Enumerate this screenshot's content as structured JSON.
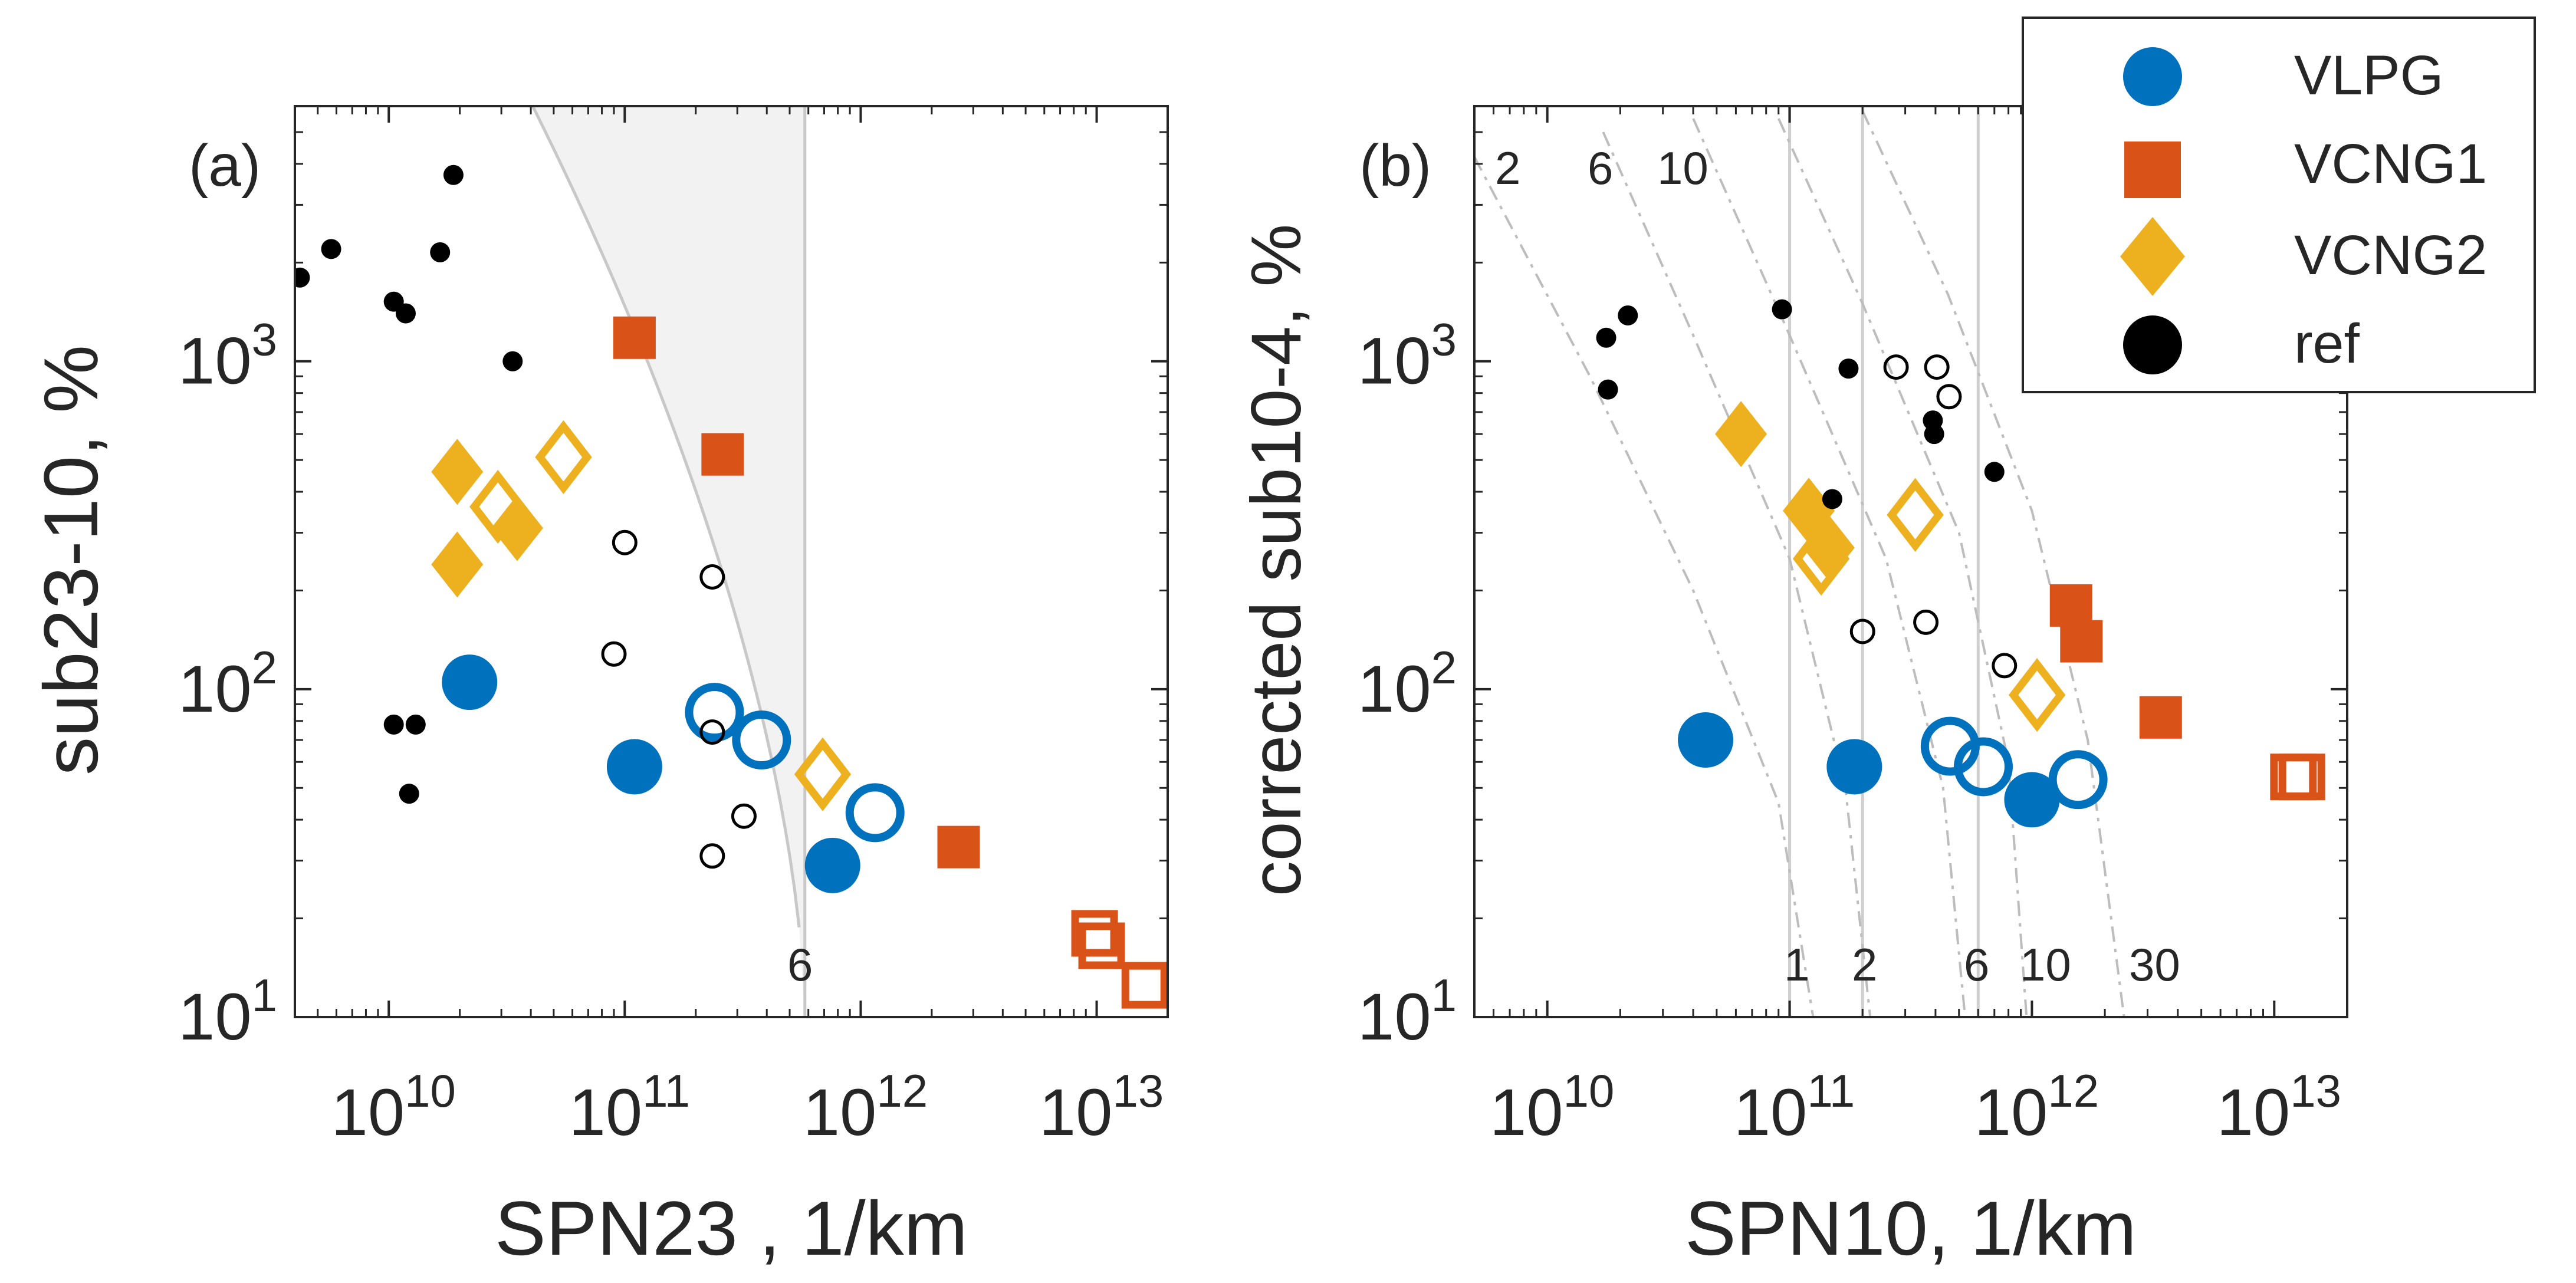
{
  "chart_data": [
    {
      "type": "scatter",
      "panel_label": "(a)",
      "xlabel": "SPN23 , 1/km",
      "ylabel": "sub23-10, %",
      "xscale": "log",
      "yscale": "log",
      "xlim": [
        4000000000.0,
        20000000000000.0
      ],
      "ylim": [
        10,
        6000
      ],
      "xticks": [
        {
          "v": 10000000000.0,
          "base": "10",
          "exp": "10"
        },
        {
          "v": 100000000000.0,
          "base": "10",
          "exp": "11"
        },
        {
          "v": 1000000000000.0,
          "base": "10",
          "exp": "12"
        },
        {
          "v": 10000000000000.0,
          "base": "10",
          "exp": "13"
        }
      ],
      "yticks": [
        {
          "v": 10,
          "base": "10",
          "exp": "1"
        },
        {
          "v": 100,
          "base": "10",
          "exp": "2"
        },
        {
          "v": 1000,
          "base": "10",
          "exp": "3"
        }
      ],
      "grid": false,
      "shaded_region": {
        "description": "grey area bounded by curve and vertical line",
        "vline_x": 580000000000.0
      },
      "curve_label": "6",
      "series": [
        {
          "name": "VLPG",
          "marker": "circle",
          "color": "#0072BD",
          "filled": [
            [
              22000000000.0,
              105
            ],
            [
              110000000000.0,
              58
            ],
            [
              760000000000.0,
              29
            ]
          ],
          "open": [
            [
              240000000000.0,
              85
            ],
            [
              380000000000.0,
              70
            ],
            [
              1150000000000.0,
              42
            ]
          ]
        },
        {
          "name": "VCNG1",
          "marker": "square",
          "color": "#D95319",
          "filled": [
            [
              110000000000.0,
              1180
            ],
            [
              260000000000.0,
              520
            ],
            [
              2600000000000.0,
              33
            ]
          ],
          "open": [
            [
              9800000000000.0,
              18
            ],
            [
              10500000000000.0,
              16.5
            ],
            [
              16000000000000.0,
              12.5
            ]
          ]
        },
        {
          "name": "VCNG2",
          "marker": "diamond",
          "color": "#EDB120",
          "filled": [
            [
              19500000000.0,
              460
            ],
            [
              19500000000.0,
              240
            ],
            [
              35000000000.0,
              310
            ]
          ],
          "open": [
            [
              29000000000.0,
              360
            ],
            [
              55000000000.0,
              510
            ],
            [
              690000000000.0,
              55
            ]
          ]
        },
        {
          "name": "ref",
          "marker": "circle",
          "color": "#000000",
          "filled": [
            [
              4200000000.0,
              1800
            ],
            [
              5700000000.0,
              2200
            ],
            [
              10500000000.0,
              1520
            ],
            [
              11800000000.0,
              1400
            ],
            [
              16500000000.0,
              2150
            ],
            [
              18800000000.0,
              3700
            ],
            [
              33500000000.0,
              1000
            ],
            [
              10500000000.0,
              78
            ],
            [
              13000000000.0,
              78
            ],
            [
              12200000000.0,
              48
            ]
          ],
          "open": [
            [
              100000000000.0,
              280
            ],
            [
              90000000000.0,
              128
            ],
            [
              235000000000.0,
              220
            ],
            [
              235000000000.0,
              74
            ],
            [
              235000000000.0,
              31
            ],
            [
              320000000000.0,
              41
            ]
          ]
        }
      ]
    },
    {
      "type": "scatter",
      "panel_label": "(b)",
      "xlabel": "SPN10, 1/km",
      "ylabel": "corrected sub10-4, %",
      "xscale": "log",
      "yscale": "log",
      "xlim": [
        5000000000.0,
        20000000000000.0
      ],
      "ylim": [
        10,
        6000
      ],
      "xticks": [
        {
          "v": 10000000000.0,
          "base": "10",
          "exp": "10"
        },
        {
          "v": 100000000000.0,
          "base": "10",
          "exp": "11"
        },
        {
          "v": 1000000000000.0,
          "base": "10",
          "exp": "12"
        },
        {
          "v": 10000000000000.0,
          "base": "10",
          "exp": "13"
        }
      ],
      "yticks": [
        {
          "v": 10,
          "base": "10",
          "exp": "1"
        },
        {
          "v": 100,
          "base": "10",
          "exp": "2"
        },
        {
          "v": 1000,
          "base": "10",
          "exp": "3"
        }
      ],
      "grid": false,
      "vlines_x": [
        100000000000.0,
        200000000000.0,
        600000000000.0
      ],
      "curve_labels_top": [
        "2",
        "6",
        "10"
      ],
      "curve_labels_bottom": [
        "1",
        "2",
        "6",
        "10",
        "30"
      ],
      "series": [
        {
          "name": "VLPG",
          "marker": "circle",
          "color": "#0072BD",
          "filled": [
            [
              45000000000.0,
              70
            ],
            [
              185000000000.0,
              58
            ],
            [
              1000000000000.0,
              46
            ]
          ],
          "open": [
            [
              460000000000.0,
              67
            ],
            [
              630000000000.0,
              58
            ],
            [
              1550000000000.0,
              53
            ]
          ]
        },
        {
          "name": "VCNG1",
          "marker": "square",
          "color": "#D95319",
          "filled": [
            [
              1450000000000.0,
              180
            ],
            [
              1600000000000.0,
              140
            ],
            [
              3400000000000.0,
              82
            ]
          ],
          "open": [
            [
              12000000000000.0,
              54
            ],
            [
              13000000000000.0,
              54
            ]
          ]
        },
        {
          "name": "VCNG2",
          "marker": "diamond",
          "color": "#EDB120",
          "filled": [
            [
              63000000000.0,
              600
            ],
            [
              120000000000.0,
              350
            ],
            [
              145000000000.0,
              270
            ]
          ],
          "open": [
            [
              135000000000.0,
              250
            ],
            [
              330000000000.0,
              340
            ],
            [
              1050000000000.0,
              96
            ]
          ]
        },
        {
          "name": "ref",
          "marker": "circle",
          "color": "#000000",
          "filled": [
            [
              17500000000.0,
              1180
            ],
            [
              17800000000.0,
              820
            ],
            [
              21500000000.0,
              1380
            ],
            [
              93000000000.0,
              1440
            ],
            [
              150000000000.0,
              380
            ],
            [
              175000000000.0,
              950
            ],
            [
              390000000000.0,
              660
            ],
            [
              395000000000.0,
              600
            ],
            [
              700000000000.0,
              460
            ]
          ],
          "open": [
            [
              275000000000.0,
              960
            ],
            [
              405000000000.0,
              960
            ],
            [
              455000000000.0,
              780
            ],
            [
              200000000000.0,
              150
            ],
            [
              365000000000.0,
              160
            ],
            [
              770000000000.0,
              118
            ]
          ]
        }
      ]
    }
  ],
  "legend": {
    "entries": [
      {
        "label": "VLPG",
        "marker": "circle",
        "color": "#0072BD"
      },
      {
        "label": "VCNG1",
        "marker": "square",
        "color": "#D95319"
      },
      {
        "label": "VCNG2",
        "marker": "diamond",
        "color": "#EDB120"
      },
      {
        "label": "ref",
        "marker": "circle",
        "color": "#000000"
      }
    ]
  }
}
